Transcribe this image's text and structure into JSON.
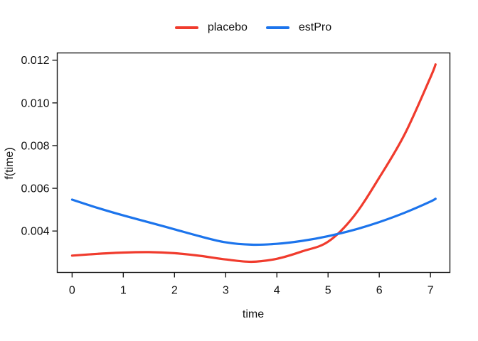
{
  "legend": {
    "items": [
      {
        "label": "placebo",
        "color": "#F03B2D"
      },
      {
        "label": "estPro",
        "color": "#1C74EC"
      }
    ]
  },
  "chart_data": {
    "type": "line",
    "title": "",
    "xlabel": "time",
    "ylabel": "f(time)",
    "xlim": [
      -0.29,
      7.38
    ],
    "ylim": [
      0.00206,
      0.01234
    ],
    "grid": false,
    "legend_position": "top-center",
    "x_ticks": [
      0,
      1,
      2,
      3,
      4,
      5,
      6,
      7
    ],
    "x_tick_labels": [
      "0",
      "1",
      "2",
      "3",
      "4",
      "5",
      "6",
      "7"
    ],
    "y_ticks": [
      0.004,
      0.006,
      0.008,
      0.01,
      0.012
    ],
    "y_tick_labels": [
      "0.004",
      "0.006",
      "0.008",
      "0.010",
      "0.012"
    ],
    "x": [
      0,
      0.5,
      1,
      1.5,
      2,
      2.5,
      3,
      3.5,
      4,
      4.5,
      5,
      5.5,
      6,
      6.5,
      7,
      7.1
    ],
    "series": [
      {
        "name": "placebo",
        "color": "#F03B2D",
        "values": [
          0.00285,
          0.00293,
          0.00299,
          0.00301,
          0.00296,
          0.00284,
          0.00267,
          0.00256,
          0.0027,
          0.00305,
          0.0035,
          0.00468,
          0.0065,
          0.00855,
          0.0112,
          0.0118
        ]
      },
      {
        "name": "estPro",
        "color": "#1C74EC",
        "values": [
          0.00547,
          0.00508,
          0.00473,
          0.00441,
          0.00408,
          0.00375,
          0.00347,
          0.00336,
          0.0034,
          0.00354,
          0.00376,
          0.00405,
          0.00442,
          0.00486,
          0.00538,
          0.00551
        ]
      }
    ]
  }
}
